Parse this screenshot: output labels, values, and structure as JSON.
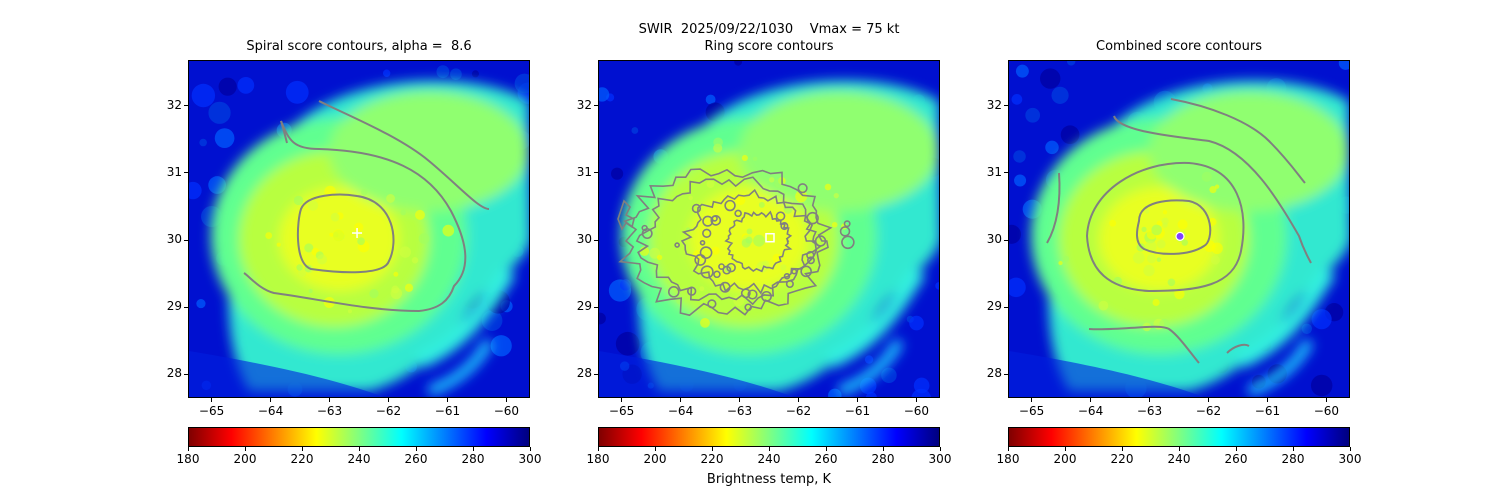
{
  "suptitle": "SWIR  2025/09/22/1030    Vmax = 75 kt",
  "colorbar_label": "Brightness temp, K",
  "colormap": [
    "#7f0000",
    "#ff0000",
    "#ff8000",
    "#ffff00",
    "#80ff80",
    "#00ffff",
    "#0080ff",
    "#0000ff",
    "#00007f"
  ],
  "chart_data": [
    {
      "type": "heatmap",
      "title": "Spiral score contours, alpha =  8.6",
      "x_ticks": [
        "−65",
        "−64",
        "−63",
        "−62",
        "−61",
        "−60"
      ],
      "y_ticks": [
        "28",
        "29",
        "30",
        "31",
        "32"
      ],
      "xlim": [
        -65.4,
        -59.6
      ],
      "ylim": [
        27.65,
        32.68
      ],
      "colorbar_ticks": [
        "180",
        "200",
        "220",
        "240",
        "260",
        "280",
        "300"
      ],
      "colorbar_range": [
        180,
        300
      ],
      "center_marker": {
        "symbol": "plus",
        "lon": -62.55,
        "lat": 30.12,
        "color": "#ffffff"
      },
      "contour_color": "#808080"
    },
    {
      "type": "heatmap",
      "title": "Ring score contours",
      "x_ticks": [
        "−65",
        "−64",
        "−63",
        "−62",
        "−61",
        "−60"
      ],
      "y_ticks": [
        "28",
        "29",
        "30",
        "31",
        "32"
      ],
      "xlim": [
        -65.4,
        -59.6
      ],
      "ylim": [
        27.65,
        32.68
      ],
      "colorbar_ticks": [
        "180",
        "200",
        "220",
        "240",
        "260",
        "280",
        "300"
      ],
      "colorbar_range": [
        180,
        300
      ],
      "center_marker": {
        "symbol": "square",
        "lon": -62.5,
        "lat": 30.05,
        "color": "#ffffff"
      },
      "contour_color": "#808080"
    },
    {
      "type": "heatmap",
      "title": "Combined score contours",
      "x_ticks": [
        "−65",
        "−64",
        "−63",
        "−62",
        "−61",
        "−60"
      ],
      "y_ticks": [
        "28",
        "29",
        "30",
        "31",
        "32"
      ],
      "xlim": [
        -65.4,
        -59.6
      ],
      "ylim": [
        27.65,
        32.68
      ],
      "colorbar_ticks": [
        "180",
        "200",
        "220",
        "240",
        "260",
        "280",
        "300"
      ],
      "colorbar_range": [
        180,
        300
      ],
      "center_marker": {
        "symbol": "circle",
        "lon": -62.5,
        "lat": 30.07,
        "color": "#8040ff"
      },
      "contour_color": "#808080"
    }
  ]
}
